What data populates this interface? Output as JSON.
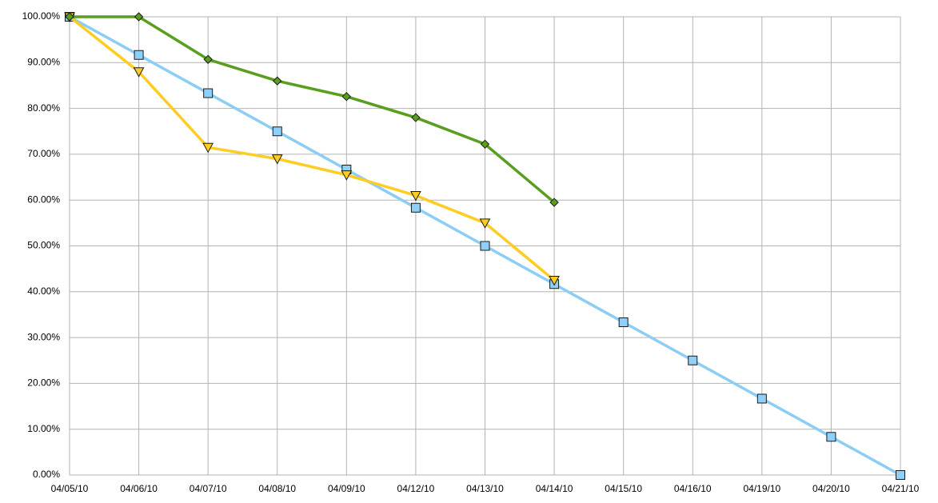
{
  "chart_data": {
    "type": "line",
    "categories": [
      "04/05/10",
      "04/06/10",
      "04/07/10",
      "04/08/10",
      "04/09/10",
      "04/12/10",
      "04/13/10",
      "04/14/10",
      "04/15/10",
      "04/16/10",
      "04/19/10",
      "04/20/10",
      "04/21/10"
    ],
    "series": [
      {
        "color": "#8ccdf5",
        "marker_fill": "#8fd0fb",
        "marker": "square",
        "values": [
          100,
          91.67,
          83.33,
          75,
          66.67,
          58.33,
          50,
          41.67,
          33.33,
          25,
          16.67,
          8.33,
          0
        ]
      },
      {
        "color": "#ffcc22",
        "marker_fill": "#ffcc22",
        "marker": "triangle-down",
        "values": [
          100,
          88,
          71.5,
          69,
          65.5,
          61,
          55,
          42.5,
          null,
          null,
          null,
          null,
          null
        ]
      },
      {
        "color": "#5a9e1f",
        "marker_fill": "#5a9e1f",
        "marker": "diamond",
        "values": [
          100,
          100,
          90.7,
          86,
          82.6,
          78,
          72.2,
          59.5,
          null,
          null,
          null,
          null,
          null
        ]
      }
    ],
    "ylim": [
      0,
      100
    ],
    "yticks": [
      {
        "value": 0,
        "label": "0.00%"
      },
      {
        "value": 10,
        "label": "10.00%"
      },
      {
        "value": 20,
        "label": "20.00%"
      },
      {
        "value": 30,
        "label": "30.00%"
      },
      {
        "value": 40,
        "label": "40.00%"
      },
      {
        "value": 50,
        "label": "50.00%"
      },
      {
        "value": 60,
        "label": "60.00%"
      },
      {
        "value": 70,
        "label": "70.00%"
      },
      {
        "value": 80,
        "label": "80.00%"
      },
      {
        "value": 90,
        "label": "90.00%"
      },
      {
        "value": 100,
        "label": "100.00%"
      }
    ],
    "grid": true
  }
}
